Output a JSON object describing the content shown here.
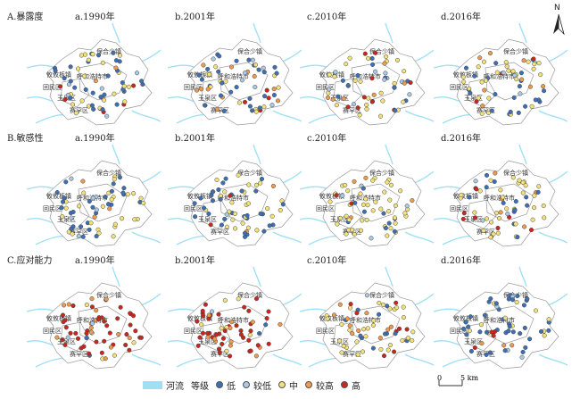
{
  "rows": [
    {
      "label": "A.暴露度",
      "panels": [
        "a.1990年",
        "b.2001年",
        "c.2010年",
        "d.2016年"
      ],
      "mix": [
        0.45,
        0.1,
        0.3,
        0.05,
        0.1
      ]
    },
    {
      "label": "B.敏感性",
      "panels": [
        "a.1990年",
        "b.2001年",
        "c.2010年",
        "d.2016年"
      ],
      "mix": [
        0.5,
        0.05,
        0.35,
        0.05,
        0.05
      ]
    },
    {
      "label": "C.应对能力",
      "panels": [
        "a.1990年",
        "b.2001年",
        "c.2010年",
        "d.2016年"
      ],
      "mix": [
        0.05,
        0.05,
        0.15,
        0.25,
        0.5
      ]
    }
  ],
  "row_mix_by_year": [
    [
      [
        0.45,
        0.1,
        0.3,
        0.05,
        0.1
      ],
      [
        0.35,
        0.1,
        0.35,
        0.1,
        0.1
      ],
      [
        0.3,
        0.1,
        0.4,
        0.1,
        0.1
      ],
      [
        0.3,
        0.1,
        0.4,
        0.1,
        0.1
      ]
    ],
    [
      [
        0.55,
        0.05,
        0.35,
        0.03,
        0.02
      ],
      [
        0.5,
        0.05,
        0.4,
        0.03,
        0.02
      ],
      [
        0.2,
        0.05,
        0.65,
        0.05,
        0.05
      ],
      [
        0.2,
        0.05,
        0.55,
        0.1,
        0.1
      ]
    ],
    [
      [
        0.05,
        0.05,
        0.1,
        0.2,
        0.6
      ],
      [
        0.05,
        0.05,
        0.1,
        0.2,
        0.6
      ],
      [
        0.15,
        0.05,
        0.6,
        0.1,
        0.1
      ],
      [
        0.65,
        0.1,
        0.2,
        0.03,
        0.02
      ]
    ]
  ],
  "place_names": [
    "保合少镇",
    "攸攸板镇",
    "呼和浩特市",
    "回民区",
    "玉泉区",
    "赛罕区"
  ],
  "legend": {
    "river_label": "河流",
    "level_title": "等级",
    "levels": [
      {
        "label": "低",
        "color": "#3d6fb6"
      },
      {
        "label": "较低",
        "color": "#a9c9e6"
      },
      {
        "label": "中",
        "color": "#f3e27a"
      },
      {
        "label": "较高",
        "color": "#ef9b4f"
      },
      {
        "label": "高",
        "color": "#c8261e"
      }
    ]
  },
  "north_label": "N",
  "scale": {
    "zero": "0",
    "max": "5 km"
  },
  "colors": {
    "river": "#9fe0f5",
    "boundary": "#9a9a9a"
  }
}
